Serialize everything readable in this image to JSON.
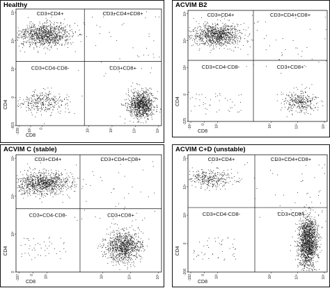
{
  "chart_data": [
    {
      "type": "scatter",
      "panel_title": "Healthy",
      "xlabel": "CD8",
      "ylabel": "CD4",
      "x_ticks": [
        "-239",
        "-10²",
        "0",
        "10²",
        "10³",
        "10⁴",
        "10⁵"
      ],
      "y_ticks": [
        "-815",
        "0",
        "10³",
        "10⁴",
        "10⁵"
      ],
      "quadrants": {
        "top_left": "CD3+CD4+",
        "top_right": "CD3+CD4+CD8+",
        "bottom_left": "CD3+CD4-CD8-",
        "bottom_right": "CD3+CD8+"
      },
      "populations": [
        {
          "quadrant": "top_left",
          "density": "high"
        },
        {
          "quadrant": "top_right",
          "density": "low"
        },
        {
          "quadrant": "bottom_left",
          "density": "medium"
        },
        {
          "quadrant": "bottom_right",
          "density": "high"
        }
      ],
      "grid": false
    },
    {
      "type": "scatter",
      "panel_title": "ACVIM  B2",
      "xlabel": "CD8",
      "ylabel": "CD4",
      "x_ticks": [
        "-10²",
        "0",
        "10²",
        "10³",
        "10⁴",
        "10⁵"
      ],
      "y_ticks": [
        "-225",
        "0",
        "10³",
        "10⁴",
        "10⁵"
      ],
      "quadrants": {
        "top_left": "CD3+CD4+",
        "top_right": "CD3+CD4+CD8+",
        "bottom_left": "CD3+CD4-CD8-",
        "bottom_right": "CD3+CD8+"
      },
      "populations": [
        {
          "quadrant": "top_left",
          "density": "high"
        },
        {
          "quadrant": "top_right",
          "density": "low"
        },
        {
          "quadrant": "bottom_left",
          "density": "low"
        },
        {
          "quadrant": "bottom_right",
          "density": "medium"
        }
      ],
      "grid": false
    },
    {
      "type": "scatter",
      "panel_title": "ACVIM C (stable)",
      "xlabel": "CD8",
      "ylabel": "CD4",
      "x_ticks": [
        "-197",
        "0",
        "10²",
        "10³",
        "10⁴",
        "10⁵"
      ],
      "y_ticks": [
        "0",
        "10³",
        "10⁴",
        "10⁵"
      ],
      "quadrants": {
        "top_left": "CD3+CD4+",
        "top_right": "CD3+CD4+CD8+",
        "bottom_left": "CD3+CD4-CD8-",
        "bottom_right": "CD3+CD8+"
      },
      "populations": [
        {
          "quadrant": "top_left",
          "density": "high"
        },
        {
          "quadrant": "top_right",
          "density": "low"
        },
        {
          "quadrant": "bottom_left",
          "density": "low"
        },
        {
          "quadrant": "bottom_right",
          "density": "high"
        }
      ],
      "grid": false
    },
    {
      "type": "scatter",
      "panel_title": "ACVIM C+D (unstable)",
      "xlabel": "CD8",
      "ylabel": "CD4",
      "x_ticks": [
        "-192",
        "0",
        "10²",
        "10³",
        "10⁴",
        "10⁵"
      ],
      "y_ticks": [
        "-206",
        "0",
        "10³",
        "10⁴",
        "10⁵"
      ],
      "quadrants": {
        "top_left": "CD3+CD4+",
        "top_right": "CD3+CD4+CD8+",
        "bottom_left": "CD3+CD4-CD8-",
        "bottom_right": "CD3+CD8+"
      },
      "populations": [
        {
          "quadrant": "top_left",
          "density": "medium"
        },
        {
          "quadrant": "top_right",
          "density": "low"
        },
        {
          "quadrant": "bottom_left",
          "density": "low"
        },
        {
          "quadrant": "bottom_right",
          "density": "very-high"
        }
      ],
      "grid": false
    }
  ]
}
